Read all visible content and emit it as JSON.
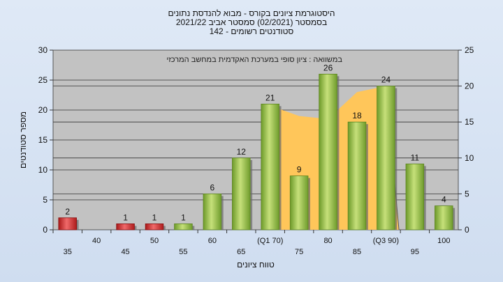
{
  "chart_data": {
    "type": "bar",
    "title_lines": [
      "היסטוגרמת ציונים בקורס - מבוא להנדסת נתונים",
      "בסמסטר  (02/2021)  סמסטר אביב 2021/22",
      "סטודנטים רשומים - 142"
    ],
    "legend_text": "במשוואה : ציון סופי במערכת האקדמית במחשב המרכזי",
    "xlabel": "טווח ציונים",
    "ylabel": "מספר סטודנטים",
    "ylim": [
      0,
      30
    ],
    "y_ticks": [
      0,
      5,
      10,
      15,
      20,
      25,
      30
    ],
    "y2lim": [
      0,
      25
    ],
    "y2_ticks": [
      0,
      5,
      10,
      15,
      20,
      25
    ],
    "categories": [
      "35",
      "40",
      "45",
      "50",
      "55",
      "60",
      "65",
      "(Q1 70)",
      "75",
      "80",
      "85",
      "(Q3 90)",
      "95",
      "100"
    ],
    "values": [
      2,
      0,
      1,
      1,
      1,
      6,
      12,
      21,
      9,
      26,
      18,
      24,
      11,
      4
    ],
    "data_labels": [
      "2",
      "",
      "1",
      "1",
      "1",
      "6",
      "12",
      "21",
      "9",
      "26",
      "18",
      "24",
      "11",
      "4"
    ],
    "red_until_index": 4,
    "green_from_index": 4,
    "area_series": {
      "categories": [
        "(Q1 70)",
        "75",
        "80",
        "85",
        "(Q3 90)"
      ],
      "values": [
        21,
        19,
        18.5,
        23,
        24
      ]
    },
    "grid": true,
    "colors": {
      "plot_bg": "#c2c2c2",
      "bar_red": "#d93030",
      "bar_green": "#8fbf3f",
      "area": "#ffc65a"
    }
  }
}
